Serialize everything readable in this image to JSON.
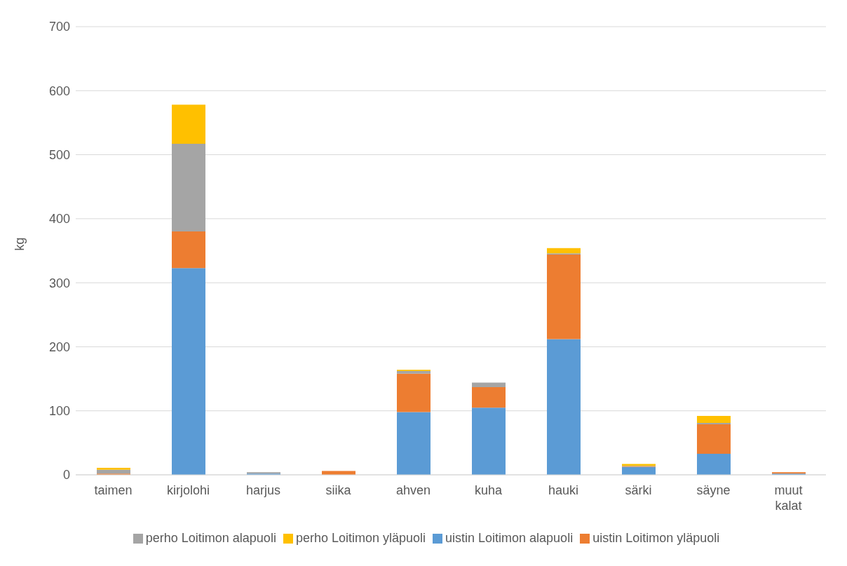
{
  "chart_data": {
    "type": "bar",
    "stacked": true,
    "ylabel": "kg",
    "categories": [
      "taimen",
      "kirjolohi",
      "harjus",
      "siika",
      "ahven",
      "kuha",
      "hauki",
      "särki",
      "säyne",
      "muut kalat"
    ],
    "series": [
      {
        "name": "uistin Loitimon alapuoli",
        "color": "#5b9bd5",
        "values": [
          0,
          323,
          2,
          0,
          98,
          105,
          212,
          12,
          33,
          2
        ]
      },
      {
        "name": "uistin Loitimon yläpuoli",
        "color": "#ed7d31",
        "values": [
          2,
          57,
          0,
          6,
          60,
          32,
          132,
          1,
          46,
          2
        ]
      },
      {
        "name": "perho Loitimon alapuoli",
        "color": "#a5a5a5",
        "values": [
          6,
          137,
          2,
          0,
          4,
          7,
          2,
          1,
          2,
          0
        ]
      },
      {
        "name": "perho Loitimon yläpuoli",
        "color": "#ffc000",
        "values": [
          3,
          61,
          0,
          0,
          2,
          0,
          8,
          3,
          11,
          0
        ]
      }
    ],
    "ylim": [
      0,
      700
    ],
    "yticks": [
      0,
      100,
      200,
      300,
      400,
      500,
      600,
      700
    ],
    "grid": "y",
    "legend": "bottom"
  }
}
